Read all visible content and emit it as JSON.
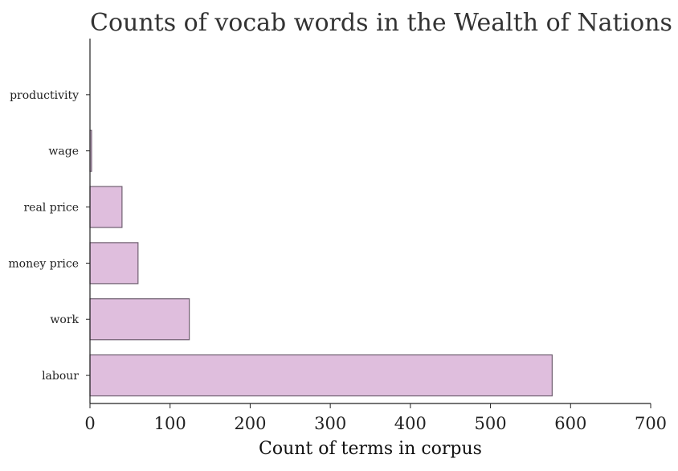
{
  "chart_data": {
    "type": "bar",
    "orientation": "horizontal",
    "title": "Counts of vocab words in the Wealth of Nations",
    "xlabel": "Count of terms in corpus",
    "ylabel": "",
    "categories": [
      "productivity",
      "wage",
      "real price",
      "money price",
      "work",
      "labour"
    ],
    "values": [
      0,
      2,
      40,
      60,
      124,
      577
    ],
    "xlim": [
      0,
      700
    ],
    "xticks": [
      0,
      100,
      200,
      300,
      400,
      500,
      600,
      700
    ],
    "grid": false,
    "legend": "none",
    "bar_color": "#dfbedd",
    "bar_edge_color": "#6f5f70"
  }
}
